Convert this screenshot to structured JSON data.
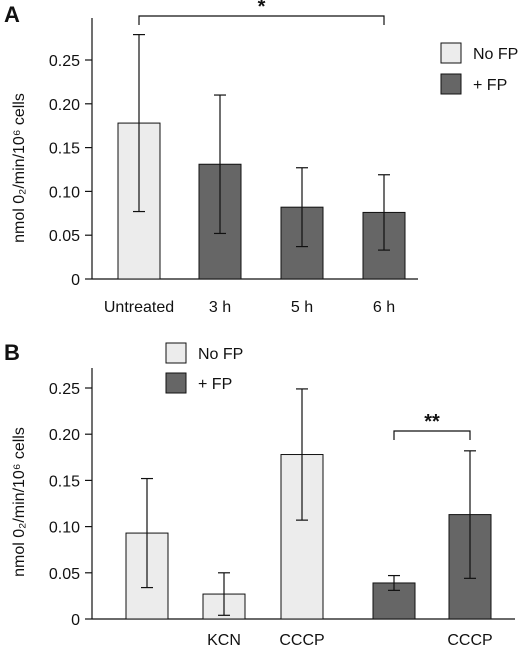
{
  "chart_data": [
    {
      "type": "bar",
      "panel_label": "A",
      "ylabel": "nmol 0₂/min/10⁶ cells",
      "ylim": [
        0,
        0.3
      ],
      "yticks": [
        "0",
        "0.05",
        "0.10",
        "0.15",
        "0.20",
        "0.25"
      ],
      "categories": [
        "Untreated",
        "3 h",
        "5 h",
        "6 h"
      ],
      "values": [
        0.178,
        0.131,
        0.082,
        0.076
      ],
      "errors": [
        0.101,
        0.079,
        0.045,
        0.043
      ],
      "groups": [
        "No FP",
        "+ FP",
        "+ FP",
        "+ FP"
      ],
      "legend": {
        "position": "top-right",
        "items": [
          {
            "label": "No FP",
            "color": "#ececec"
          },
          {
            "label": "+ FP",
            "color": "#666666"
          }
        ]
      },
      "significance": [
        {
          "from": 0,
          "to": 3,
          "label": "*"
        }
      ]
    },
    {
      "type": "bar",
      "panel_label": "B",
      "ylabel": "nmol 0₂/min/10⁶ cells",
      "ylim": [
        0,
        0.28
      ],
      "yticks": [
        "0",
        "0.05",
        "0.10",
        "0.15",
        "0.20",
        "0.25"
      ],
      "categories": [
        "",
        "KCN",
        "CCCP",
        "",
        "CCCP"
      ],
      "values": [
        0.093,
        0.027,
        0.178,
        0.039,
        0.113
      ],
      "errors": [
        0.059,
        0.023,
        0.071,
        0.008,
        0.069
      ],
      "groups": [
        "No FP",
        "No FP",
        "No FP",
        "+ FP",
        "+ FP"
      ],
      "legend": {
        "position": "top-center",
        "items": [
          {
            "label": "No FP",
            "color": "#ececec"
          },
          {
            "label": "+ FP",
            "color": "#666666"
          }
        ]
      },
      "significance": [
        {
          "from": 3,
          "to": 4,
          "label": "**"
        }
      ]
    }
  ]
}
